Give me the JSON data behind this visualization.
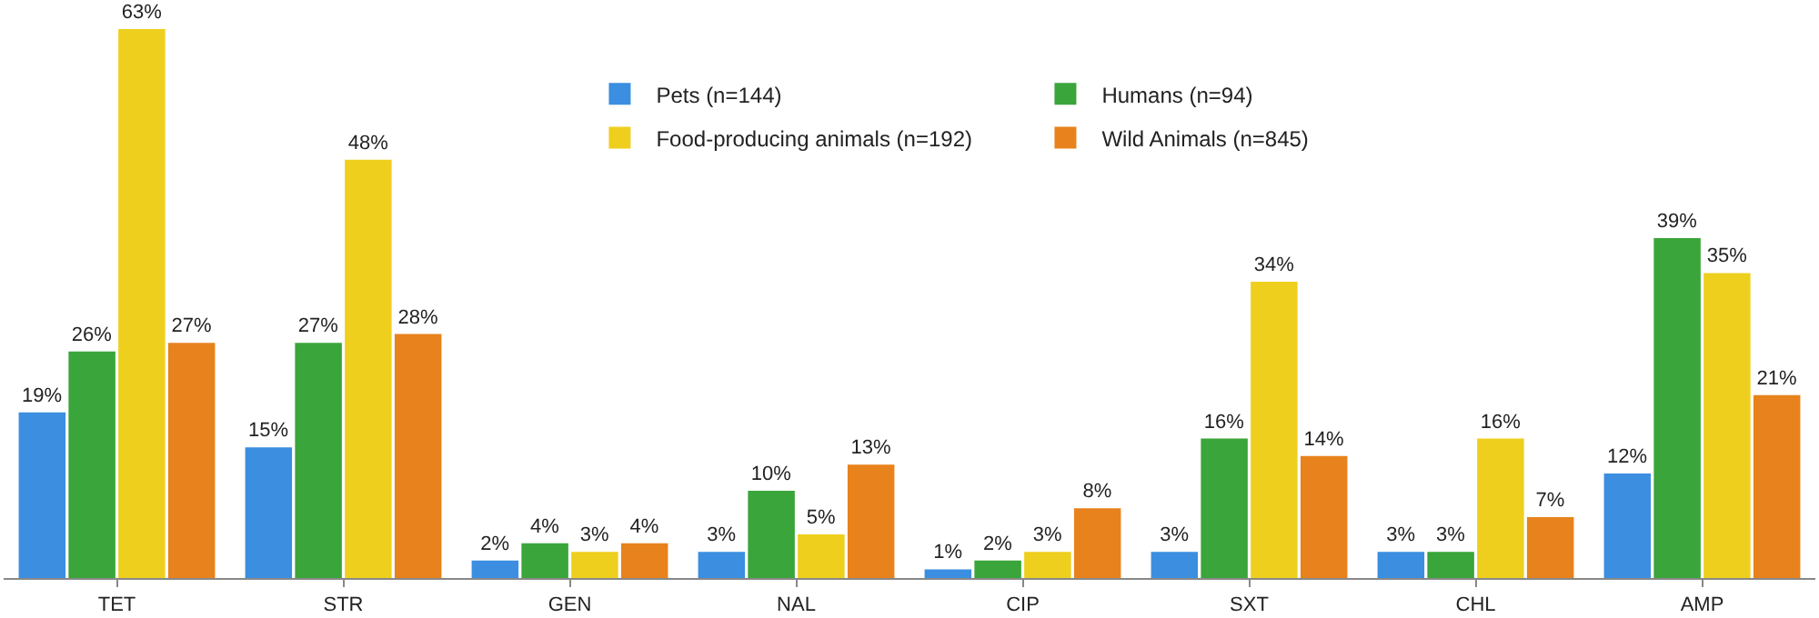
{
  "chart_data": {
    "type": "bar",
    "categories": [
      "TET",
      "STR",
      "GEN",
      "NAL",
      "CIP",
      "SXT",
      "CHL",
      "AMP"
    ],
    "legend": "top",
    "series": [
      {
        "name": "Pets (n=144)",
        "color": "#3b8ee0",
        "values": [
          19,
          15,
          2,
          3,
          1,
          3,
          3,
          12
        ],
        "value_labels": [
          "19%",
          "15%",
          "2%",
          "3%",
          "1%",
          "3%",
          "3%",
          "12%"
        ]
      },
      {
        "name": "Humans (n=94)",
        "color": "#3aa53a",
        "values": [
          26,
          27,
          4,
          10,
          2,
          16,
          3,
          39
        ],
        "value_labels": [
          "26%",
          "27%",
          "4%",
          "10%",
          "2%",
          "16%",
          "3%",
          "39%"
        ]
      },
      {
        "name": "Food-producing animals (n=192)",
        "color": "#efcf1e",
        "values": [
          63,
          48,
          3,
          5,
          3,
          34,
          16,
          35
        ],
        "value_labels": [
          "63%",
          "48%",
          "3%",
          "5%",
          "3%",
          "34%",
          "16%",
          "35%"
        ]
      },
      {
        "name": "Wild Animals (n=845)",
        "color": "#e8821c",
        "values": [
          27,
          28,
          4,
          13,
          8,
          14,
          7,
          21
        ],
        "value_labels": [
          "27%",
          "28%",
          "4%",
          "13%",
          "8%",
          "14%",
          "7%",
          "21%"
        ]
      }
    ]
  }
}
